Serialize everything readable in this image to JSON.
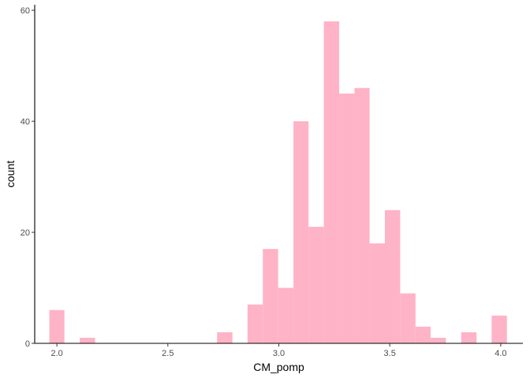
{
  "chart_data": {
    "type": "bar",
    "subtype": "histogram",
    "xlabel": "CM_pomp",
    "ylabel": "count",
    "xlim": [
      1.9,
      4.1
    ],
    "ylim": [
      0,
      61
    ],
    "x_ticks": [
      2.0,
      2.5,
      3.0,
      3.5,
      4.0
    ],
    "x_tick_labels": [
      "2.0",
      "2.5",
      "3.0",
      "3.5",
      "4.0"
    ],
    "y_ticks": [
      0,
      20,
      40,
      60
    ],
    "y_tick_labels": [
      "0",
      "20",
      "40",
      "60"
    ],
    "bin_width": 0.0687,
    "bins": [
      {
        "x0": 1.966,
        "x1": 2.034,
        "count": 6
      },
      {
        "x0": 2.103,
        "x1": 2.172,
        "count": 1
      },
      {
        "x0": 2.722,
        "x1": 2.791,
        "count": 2
      },
      {
        "x0": 2.859,
        "x1": 2.928,
        "count": 7
      },
      {
        "x0": 2.928,
        "x1": 2.997,
        "count": 17
      },
      {
        "x0": 2.997,
        "x1": 3.066,
        "count": 10
      },
      {
        "x0": 3.066,
        "x1": 3.134,
        "count": 40
      },
      {
        "x0": 3.134,
        "x1": 3.203,
        "count": 21
      },
      {
        "x0": 3.203,
        "x1": 3.272,
        "count": 58
      },
      {
        "x0": 3.272,
        "x1": 3.341,
        "count": 45
      },
      {
        "x0": 3.341,
        "x1": 3.409,
        "count": 46
      },
      {
        "x0": 3.409,
        "x1": 3.478,
        "count": 18
      },
      {
        "x0": 3.478,
        "x1": 3.547,
        "count": 24
      },
      {
        "x0": 3.547,
        "x1": 3.616,
        "count": 9
      },
      {
        "x0": 3.616,
        "x1": 3.684,
        "count": 3
      },
      {
        "x0": 3.684,
        "x1": 3.753,
        "count": 1
      },
      {
        "x0": 3.822,
        "x1": 3.891,
        "count": 2
      },
      {
        "x0": 3.959,
        "x1": 4.028,
        "count": 5
      }
    ],
    "bar_color": "#FFB3C6",
    "axis_color": "#000000",
    "grid": false,
    "legend": "none"
  }
}
